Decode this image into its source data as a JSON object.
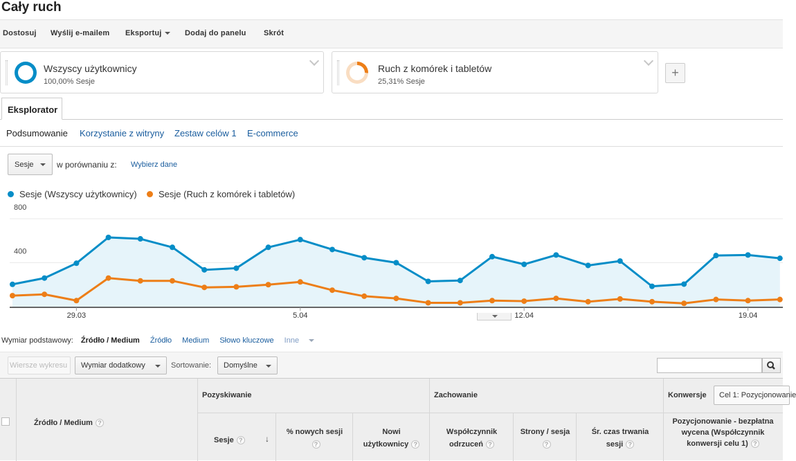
{
  "title": "Cały ruch",
  "toolbar": {
    "customize": "Dostosuj",
    "email": "Wyślij e-mailem",
    "export": "Eksportuj",
    "add_dashboard": "Dodaj do panelu",
    "shortcut": "Skrót"
  },
  "segments": [
    {
      "name": "Wszyscy użytkownicy",
      "sub": "100,00% Sesje",
      "color": "#058dc7",
      "share": 1.0
    },
    {
      "name": "Ruch z komórek i tabletów",
      "sub": "25,31% Sesje",
      "color": "#ed7e17",
      "share": 0.2531
    }
  ],
  "add_segment": "+",
  "tabs": {
    "explorer": "Eksplorator"
  },
  "subtabs": [
    "Podsumowanie",
    "Korzystanie z witryny",
    "Zestaw celów 1",
    "E-commerce"
  ],
  "metric": {
    "selected": "Sesje",
    "compare_label": "w porównaniu z:",
    "choose": "Wybierz dane"
  },
  "chart_data": {
    "type": "line",
    "y_ticks": [
      "800",
      "400"
    ],
    "ylim": [
      0,
      800
    ],
    "x_ticks": [
      "29.03",
      "5.04",
      "12.04",
      "19.04"
    ],
    "series": [
      {
        "name": "Sesje (Wszyscy użytkownicy)",
        "color": "#058dc7",
        "values": [
          203,
          260,
          395,
          630,
          617,
          540,
          335,
          350,
          540,
          610,
          520,
          445,
          400,
          230,
          238,
          455,
          385,
          470,
          375,
          415,
          185,
          205,
          465,
          470,
          440
        ]
      },
      {
        "name": "Sesje (Ruch z komórek i tabletów)",
        "color": "#ed7e17",
        "values": [
          100,
          112,
          55,
          260,
          235,
          235,
          175,
          180,
          200,
          225,
          150,
          95,
          75,
          35,
          35,
          55,
          50,
          75,
          45,
          70,
          45,
          30,
          65,
          55,
          65
        ]
      }
    ]
  },
  "dimension": {
    "label": "Wymiar podstawowy:",
    "active": "Źródło / Medium",
    "links": [
      "Źródło",
      "Medium",
      "Słowo kluczowe",
      "Inne"
    ]
  },
  "controls": {
    "plot_rows": "Wiersze wykresu",
    "secondary": "Wymiar dodatkowy",
    "sort_label": "Sortowanie:",
    "sort_value": "Domyślne"
  },
  "table": {
    "dim_col": "Źródło / Medium",
    "groups": {
      "acquisition": "Pozyskiwanie",
      "behavior": "Zachowanie",
      "conversion": "Konwersje"
    },
    "goal_select": "Cel 1: Pozycjonowanie",
    "columns": {
      "sessions": "Sesje",
      "new_sessions_pct": "% nowych sesji",
      "new_users": "Nowi użytkownicy",
      "bounce": "Współczynnik odrzuceń",
      "pages": "Strony / sesja",
      "duration": "Śr. czas trwania sesji",
      "goal": "Pozycjonowanie - bezpłatna wycena (Współczynnik konwersji celu 1)"
    }
  }
}
